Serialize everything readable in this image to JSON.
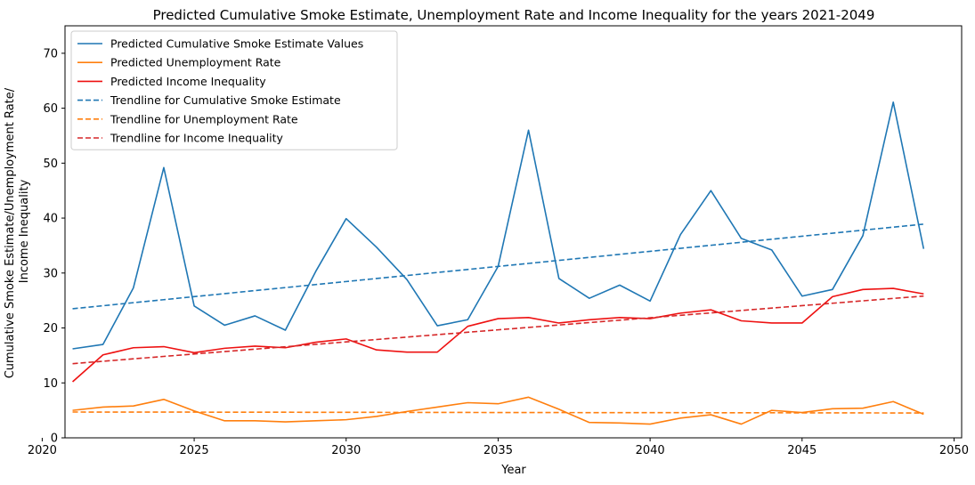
{
  "chart_data": {
    "type": "line",
    "title": "Predicted Cumulative Smoke Estimate, Unemployment Rate and Income Inequality for the years 2021-2049",
    "xlabel": "Year",
    "ylabel_lines": [
      "Cumulative Smoke Estimate/Unemployment Rate/",
      "Income Inequality"
    ],
    "xlim": [
      2020.75,
      2050.25
    ],
    "ylim": [
      0,
      75
    ],
    "xticks": [
      2020,
      2025,
      2030,
      2035,
      2040,
      2045,
      2050
    ],
    "yticks": [
      0,
      10,
      20,
      30,
      40,
      50,
      60,
      70
    ],
    "grid": false,
    "legend_position": "top-left",
    "x": [
      2021,
      2022,
      2023,
      2024,
      2025,
      2026,
      2027,
      2028,
      2029,
      2030,
      2031,
      2032,
      2033,
      2034,
      2035,
      2036,
      2037,
      2038,
      2039,
      2040,
      2041,
      2042,
      2043,
      2044,
      2045,
      2046,
      2047,
      2048,
      2049
    ],
    "series": [
      {
        "name": "Predicted Cumulative Smoke Estimate Values",
        "color": "#1f77b4",
        "style": "solid",
        "values": [
          16.2,
          17.0,
          27.3,
          49.2,
          24.0,
          20.5,
          22.2,
          19.6,
          30.3,
          39.9,
          34.7,
          28.8,
          20.4,
          21.5,
          31.2,
          56.0,
          29.0,
          25.4,
          27.8,
          24.9,
          37.0,
          45.0,
          36.3,
          34.2,
          25.8,
          27.0,
          36.8,
          61.1,
          34.4
        ]
      },
      {
        "name": "Predicted Unemployment Rate",
        "color": "#ff7f0e",
        "style": "solid",
        "values": [
          5.0,
          5.6,
          5.8,
          7.0,
          4.9,
          3.1,
          3.1,
          2.9,
          3.1,
          3.3,
          3.9,
          4.8,
          5.6,
          6.4,
          6.2,
          7.4,
          5.2,
          2.8,
          2.7,
          2.5,
          3.6,
          4.2,
          2.5,
          5.0,
          4.6,
          5.3,
          5.4,
          6.6,
          4.3
        ]
      },
      {
        "name": "Predicted Income Inequality",
        "color": "#ee1111",
        "style": "solid",
        "values": [
          10.2,
          15.1,
          16.4,
          16.6,
          15.5,
          16.3,
          16.7,
          16.4,
          17.4,
          18.0,
          16.0,
          15.6,
          15.6,
          20.3,
          21.7,
          21.9,
          20.9,
          21.5,
          21.9,
          21.7,
          22.7,
          23.3,
          21.3,
          20.9,
          20.9,
          25.7,
          27.0,
          27.2,
          26.2
        ]
      },
      {
        "name": "Trendline for Cumulative Smoke Estimate",
        "color": "#1f77b4",
        "style": "dashed",
        "values": [
          23.5,
          24.05,
          24.6,
          25.15,
          25.7,
          26.25,
          26.8,
          27.35,
          27.9,
          28.45,
          29.0,
          29.55,
          30.1,
          30.65,
          31.2,
          31.75,
          32.3,
          32.85,
          33.4,
          33.95,
          34.5,
          35.05,
          35.6,
          36.15,
          36.7,
          37.25,
          37.8,
          38.35,
          38.9
        ]
      },
      {
        "name": "Trendline for Unemployment Rate",
        "color": "#ff7f0e",
        "style": "dashed",
        "values": [
          4.7,
          4.69,
          4.69,
          4.68,
          4.68,
          4.67,
          4.66,
          4.66,
          4.65,
          4.64,
          4.64,
          4.63,
          4.63,
          4.62,
          4.61,
          4.61,
          4.6,
          4.59,
          4.59,
          4.58,
          4.58,
          4.57,
          4.56,
          4.56,
          4.55,
          4.54,
          4.54,
          4.53,
          4.52
        ]
      },
      {
        "name": "Trendline for Income Inequality",
        "color": "#d62728",
        "style": "dashed",
        "values": [
          13.5,
          13.94,
          14.38,
          14.82,
          15.26,
          15.7,
          16.14,
          16.58,
          17.02,
          17.46,
          17.9,
          18.34,
          18.78,
          19.22,
          19.66,
          20.1,
          20.54,
          20.98,
          21.42,
          21.86,
          22.3,
          22.74,
          23.18,
          23.62,
          24.06,
          24.5,
          24.94,
          25.38,
          25.8
        ]
      }
    ]
  }
}
